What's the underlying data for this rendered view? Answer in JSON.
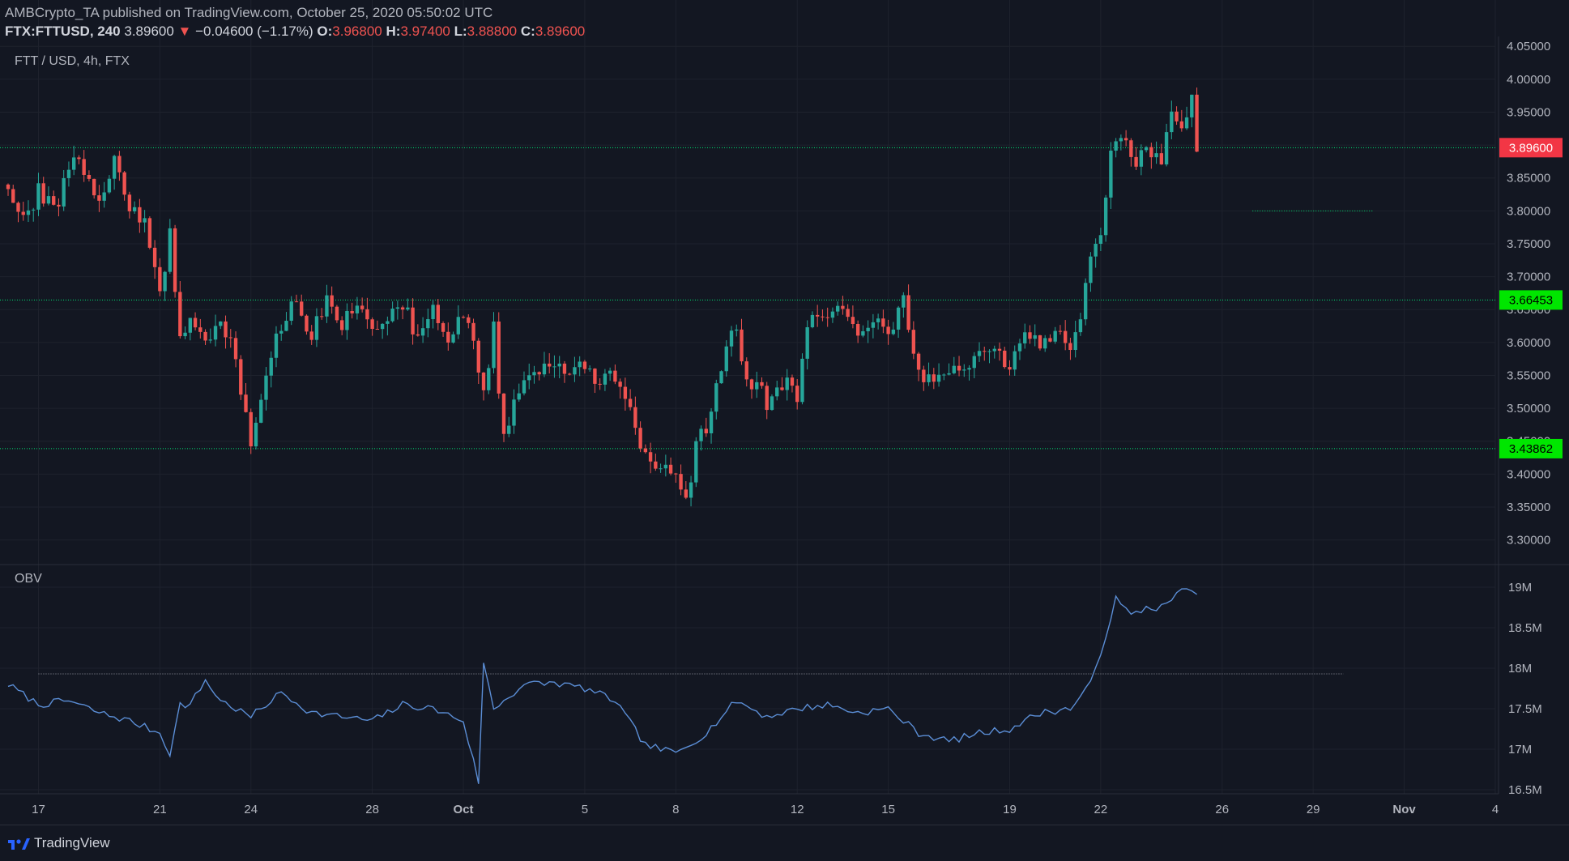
{
  "header": {
    "publisher_line": "AMBCrypto_TA published on TradingView.com, October 25, 2020 05:50:02 UTC",
    "symbol": "FTX:FTTUSD, 240",
    "last": "3.89600",
    "change_arrow": "▼",
    "change": "−0.04600 (−1.17%)",
    "o_label": "O:",
    "o_val": "3.96800",
    "h_label": "H:",
    "h_val": "3.97400",
    "l_label": "L:",
    "l_val": "3.88800",
    "c_label": "C:",
    "c_val": "3.89600"
  },
  "pane_labels": {
    "main": "FTT / USD, 4h, FTX",
    "indicator": "OBV"
  },
  "footer": {
    "brand": "TradingView"
  },
  "colors": {
    "background": "#131722",
    "up": "#26a69a",
    "down": "#ef5350",
    "level_line": "#00e676",
    "obv_line": "#5b8ed6",
    "price_badge_red": "#f23645",
    "price_badge_green": "#00e600"
  },
  "chart_data": [
    {
      "type": "candlestick",
      "title": "FTT / USD, 4h, FTX",
      "x_range": [
        "2020-09-16",
        "2020-11-04"
      ],
      "x_tick_labels": [
        {
          "label": "17",
          "date": "2020-09-17"
        },
        {
          "label": "21",
          "date": "2020-09-21"
        },
        {
          "label": "24",
          "date": "2020-09-24"
        },
        {
          "label": "28",
          "date": "2020-09-28"
        },
        {
          "label": "Oct",
          "date": "2020-10-01"
        },
        {
          "label": "5",
          "date": "2020-10-05"
        },
        {
          "label": "8",
          "date": "2020-10-08"
        },
        {
          "label": "12",
          "date": "2020-10-12"
        },
        {
          "label": "15",
          "date": "2020-10-15"
        },
        {
          "label": "19",
          "date": "2020-10-19"
        },
        {
          "label": "22",
          "date": "2020-10-22"
        },
        {
          "label": "26",
          "date": "2020-10-26"
        },
        {
          "label": "29",
          "date": "2020-10-29"
        },
        {
          "label": "Nov",
          "date": "2020-11-01"
        },
        {
          "label": "4",
          "date": "2020-11-04"
        }
      ],
      "y_range": [
        3.265,
        4.065
      ],
      "y_tick_labels": [
        "4.05000",
        "4.00000",
        "3.95000",
        "3.90000",
        "3.85000",
        "3.80000",
        "3.75000",
        "3.70000",
        "3.65000",
        "3.60000",
        "3.55000",
        "3.50000",
        "3.45000",
        "3.40000",
        "3.35000",
        "3.30000"
      ],
      "price_path": [
        [
          "2020-09-16",
          3.84
        ],
        [
          "2020-09-16 12:00",
          3.78
        ],
        [
          "2020-09-17",
          3.83
        ],
        [
          "2020-09-17 12:00",
          3.8
        ],
        [
          "2020-09-18",
          3.86
        ],
        [
          "2020-09-18 08:00",
          3.89
        ],
        [
          "2020-09-18 16:00",
          3.84
        ],
        [
          "2020-09-19",
          3.82
        ],
        [
          "2020-09-19 12:00",
          3.87
        ],
        [
          "2020-09-20",
          3.81
        ],
        [
          "2020-09-20 12:00",
          3.78
        ],
        [
          "2020-09-21",
          3.68
        ],
        [
          "2020-09-21 08:00",
          3.76
        ],
        [
          "2020-09-21 16:00",
          3.6
        ],
        [
          "2020-09-22",
          3.64
        ],
        [
          "2020-09-22 12:00",
          3.6
        ],
        [
          "2020-09-23",
          3.62
        ],
        [
          "2020-09-23 12:00",
          3.58
        ],
        [
          "2020-09-24",
          3.44
        ],
        [
          "2020-09-24 12:00",
          3.54
        ],
        [
          "2020-09-25",
          3.63
        ],
        [
          "2020-09-25 12:00",
          3.66
        ],
        [
          "2020-09-26",
          3.61
        ],
        [
          "2020-09-26 12:00",
          3.66
        ],
        [
          "2020-09-27",
          3.63
        ],
        [
          "2020-09-27 12:00",
          3.66
        ],
        [
          "2020-09-28",
          3.61
        ],
        [
          "2020-09-28 12:00",
          3.64
        ],
        [
          "2020-09-29",
          3.66
        ],
        [
          "2020-09-29 12:00",
          3.6
        ],
        [
          "2020-09-30",
          3.65
        ],
        [
          "2020-09-30 12:00",
          3.61
        ],
        [
          "2020-10-01",
          3.64
        ],
        [
          "2020-10-01 08:00",
          3.6
        ],
        [
          "2020-10-01 16:00",
          3.52
        ],
        [
          "2020-10-02",
          3.62
        ],
        [
          "2020-10-02 08:00",
          3.45
        ],
        [
          "2020-10-02 16:00",
          3.52
        ],
        [
          "2020-10-03",
          3.55
        ],
        [
          "2020-10-03 12:00",
          3.56
        ],
        [
          "2020-10-04",
          3.57
        ],
        [
          "2020-10-04 12:00",
          3.55
        ],
        [
          "2020-10-05",
          3.57
        ],
        [
          "2020-10-05 12:00",
          3.54
        ],
        [
          "2020-10-06",
          3.55
        ],
        [
          "2020-10-06 12:00",
          3.5
        ],
        [
          "2020-10-07",
          3.42
        ],
        [
          "2020-10-07 12:00",
          3.4
        ],
        [
          "2020-10-08",
          3.41
        ],
        [
          "2020-10-08 08:00",
          3.36
        ],
        [
          "2020-10-08 16:00",
          3.44
        ],
        [
          "2020-10-09",
          3.47
        ],
        [
          "2020-10-09 12:00",
          3.56
        ],
        [
          "2020-10-10",
          3.63
        ],
        [
          "2020-10-10 08:00",
          3.53
        ],
        [
          "2020-10-10 16:00",
          3.55
        ],
        [
          "2020-10-11",
          3.51
        ],
        [
          "2020-10-11 12:00",
          3.54
        ],
        [
          "2020-10-12",
          3.52
        ],
        [
          "2020-10-12 08:00",
          3.62
        ],
        [
          "2020-10-12 16:00",
          3.64
        ],
        [
          "2020-10-13",
          3.63
        ],
        [
          "2020-10-13 12:00",
          3.66
        ],
        [
          "2020-10-14",
          3.61
        ],
        [
          "2020-10-14 12:00",
          3.64
        ],
        [
          "2020-10-15",
          3.62
        ],
        [
          "2020-10-15 12:00",
          3.66
        ],
        [
          "2020-10-16",
          3.56
        ],
        [
          "2020-10-16 12:00",
          3.53
        ],
        [
          "2020-10-17",
          3.56
        ],
        [
          "2020-10-17 12:00",
          3.55
        ],
        [
          "2020-10-18",
          3.58
        ],
        [
          "2020-10-18 12:00",
          3.6
        ],
        [
          "2020-10-19",
          3.56
        ],
        [
          "2020-10-19 12:00",
          3.62
        ],
        [
          "2020-10-20",
          3.59
        ],
        [
          "2020-10-20 12:00",
          3.62
        ],
        [
          "2020-10-21",
          3.58
        ],
        [
          "2020-10-21 08:00",
          3.64
        ],
        [
          "2020-10-21 16:00",
          3.74
        ],
        [
          "2020-10-22",
          3.77
        ],
        [
          "2020-10-22 08:00",
          3.88
        ],
        [
          "2020-10-22 16:00",
          3.92
        ],
        [
          "2020-10-23",
          3.87
        ],
        [
          "2020-10-23 12:00",
          3.9
        ],
        [
          "2020-10-24",
          3.88
        ],
        [
          "2020-10-24 08:00",
          3.94
        ],
        [
          "2020-10-24 16:00",
          3.93
        ],
        [
          "2020-10-25",
          3.97
        ],
        [
          "2020-10-25 04:00",
          3.896
        ]
      ],
      "horizontal_levels": [
        3.896,
        3.66453,
        3.43862
      ],
      "short_level_segment": {
        "value": 3.8,
        "x_from": "2020-10-27",
        "x_to": "2020-10-31"
      },
      "price_badges": [
        "3.89600",
        "3.66453",
        "3.43862"
      ],
      "grid": true
    },
    {
      "type": "line",
      "title": "OBV",
      "y_range": [
        16.45,
        19.25
      ],
      "y_tick_labels": [
        "19M",
        "18.5M",
        "18M",
        "17.5M",
        "17M",
        "16.5M"
      ],
      "obv_path": [
        [
          "2020-09-16",
          17.8
        ],
        [
          "2020-09-17",
          17.55
        ],
        [
          "2020-09-18",
          17.6
        ],
        [
          "2020-09-19",
          17.45
        ],
        [
          "2020-09-20",
          17.35
        ],
        [
          "2020-09-21",
          17.2
        ],
        [
          "2020-09-21 08:00",
          16.95
        ],
        [
          "2020-09-21 16:00",
          17.55
        ],
        [
          "2020-09-22",
          17.55
        ],
        [
          "2020-09-22 12:00",
          17.85
        ],
        [
          "2020-09-23",
          17.6
        ],
        [
          "2020-09-24",
          17.4
        ],
        [
          "2020-09-25",
          17.7
        ],
        [
          "2020-09-26",
          17.45
        ],
        [
          "2020-09-27",
          17.4
        ],
        [
          "2020-09-28",
          17.35
        ],
        [
          "2020-09-29",
          17.55
        ],
        [
          "2020-09-30",
          17.5
        ],
        [
          "2020-10-01",
          17.35
        ],
        [
          "2020-10-01 12:00",
          16.6
        ],
        [
          "2020-10-01 16:00",
          18.05
        ],
        [
          "2020-10-02",
          17.5
        ],
        [
          "2020-10-03",
          17.8
        ],
        [
          "2020-10-04",
          17.82
        ],
        [
          "2020-10-05",
          17.75
        ],
        [
          "2020-10-06",
          17.6
        ],
        [
          "2020-10-07",
          17.05
        ],
        [
          "2020-10-08",
          16.95
        ],
        [
          "2020-10-09",
          17.2
        ],
        [
          "2020-10-10",
          17.6
        ],
        [
          "2020-10-11",
          17.4
        ],
        [
          "2020-10-12",
          17.5
        ],
        [
          "2020-10-13",
          17.55
        ],
        [
          "2020-10-14",
          17.45
        ],
        [
          "2020-10-15",
          17.5
        ],
        [
          "2020-10-16",
          17.2
        ],
        [
          "2020-10-17",
          17.1
        ],
        [
          "2020-10-18",
          17.2
        ],
        [
          "2020-10-19",
          17.25
        ],
        [
          "2020-10-20",
          17.45
        ],
        [
          "2020-10-21",
          17.5
        ],
        [
          "2020-10-21 16:00",
          17.8
        ],
        [
          "2020-10-22",
          18.2
        ],
        [
          "2020-10-22 12:00",
          18.85
        ],
        [
          "2020-10-23",
          18.65
        ],
        [
          "2020-10-23 12:00",
          18.75
        ],
        [
          "2020-10-24",
          18.75
        ],
        [
          "2020-10-24 16:00",
          18.95
        ],
        [
          "2020-10-25",
          19.0
        ],
        [
          "2020-10-25 04:00",
          18.92
        ]
      ],
      "reference_level": 17.93,
      "grid": true
    }
  ]
}
